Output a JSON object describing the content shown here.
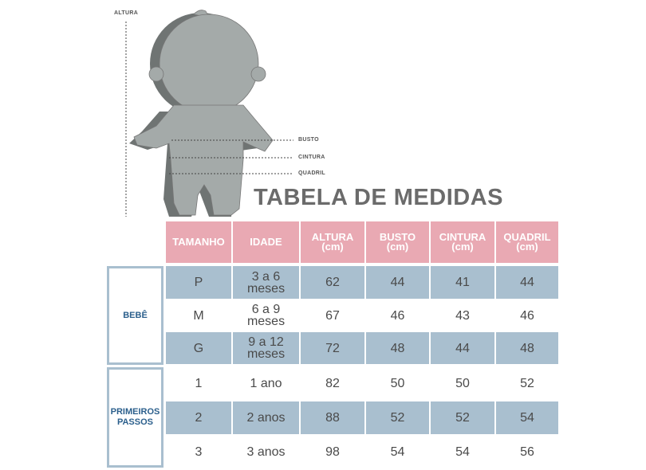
{
  "figure": {
    "labels": {
      "height": "ALTURA",
      "bust": "BUSTO",
      "waist": "CINTURA",
      "hip": "QUADRIL"
    },
    "icon": "baby-silhouette-icon"
  },
  "title": "TABELA DE MEDIDAS",
  "colors": {
    "header": "#e9a9b3",
    "row_stripe": "#a9bfcf",
    "group_text": "#2b5f8c",
    "figure": "#a4aaa9"
  },
  "table": {
    "headers": [
      {
        "l1": "TAMANHO",
        "l2": ""
      },
      {
        "l1": "IDADE",
        "l2": ""
      },
      {
        "l1": "ALTURA",
        "l2": "(cm)"
      },
      {
        "l1": "BUSTO",
        "l2": "(cm)"
      },
      {
        "l1": "CINTURA",
        "l2": "(cm)"
      },
      {
        "l1": "QUADRIL",
        "l2": "(cm)"
      }
    ],
    "groups": [
      {
        "l1": "BEBÊ",
        "l2": ""
      },
      {
        "l1": "PRIMEIROS",
        "l2": "PASSOS"
      }
    ],
    "rows": [
      {
        "size": "P",
        "age1": "3 a 6",
        "age2": "meses",
        "height": "62",
        "bust": "44",
        "waist": "41",
        "hip": "44"
      },
      {
        "size": "M",
        "age1": "6 a 9",
        "age2": "meses",
        "height": "67",
        "bust": "46",
        "waist": "43",
        "hip": "46"
      },
      {
        "size": "G",
        "age1": "9 a 12",
        "age2": "meses",
        "height": "72",
        "bust": "48",
        "waist": "44",
        "hip": "48"
      },
      {
        "size": "1",
        "age1": "1 ano",
        "age2": "",
        "height": "82",
        "bust": "50",
        "waist": "50",
        "hip": "52"
      },
      {
        "size": "2",
        "age1": "2 anos",
        "age2": "",
        "height": "88",
        "bust": "52",
        "waist": "52",
        "hip": "54"
      },
      {
        "size": "3",
        "age1": "3 anos",
        "age2": "",
        "height": "98",
        "bust": "54",
        "waist": "54",
        "hip": "56"
      }
    ]
  }
}
